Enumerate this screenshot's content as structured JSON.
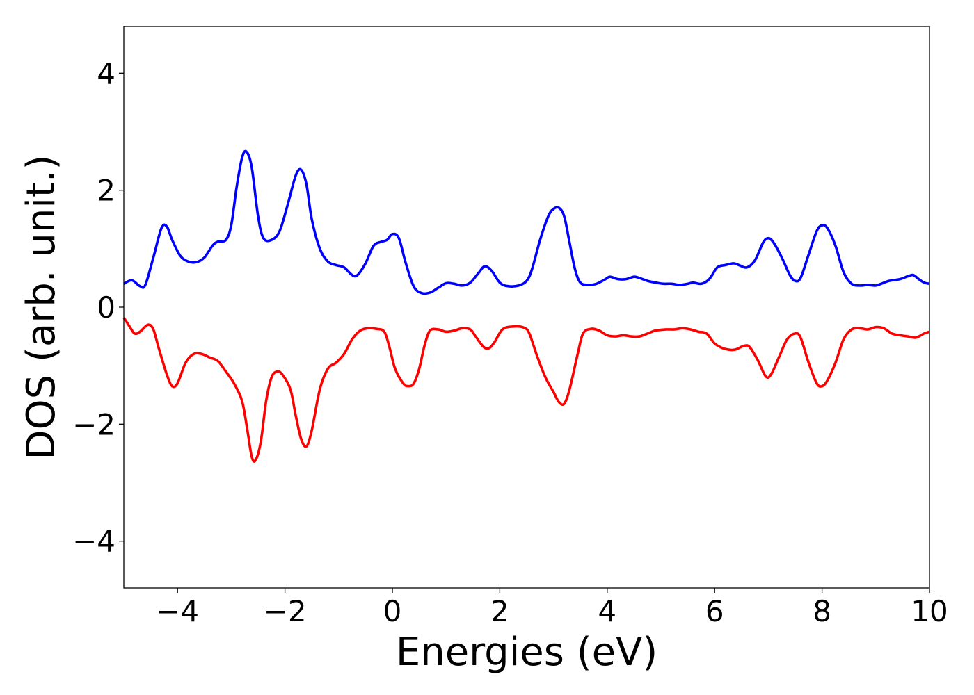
{
  "chart_data": {
    "type": "line",
    "title": "",
    "xlabel": "Energies (eV)",
    "ylabel": "DOS (arb. unit.)",
    "xlim": [
      -5,
      10
    ],
    "ylim": [
      -4.8,
      4.8
    ],
    "xticks": [
      -4,
      -2,
      0,
      2,
      4,
      6,
      8,
      10
    ],
    "yticks": [
      -4,
      -2,
      0,
      2,
      4
    ],
    "xtick_labels": [
      "−4",
      "−2",
      "0",
      "2",
      "4",
      "6",
      "8",
      "10"
    ],
    "ytick_labels": [
      "−4",
      "−2",
      "0",
      "2",
      "4"
    ],
    "grid": false,
    "legend": null,
    "series": [
      {
        "color": "#0000ff",
        "points": [
          [
            -5.0,
            0.4
          ],
          [
            -4.85,
            0.46
          ],
          [
            -4.7,
            0.36
          ],
          [
            -4.6,
            0.38
          ],
          [
            -4.45,
            0.85
          ],
          [
            -4.3,
            1.35
          ],
          [
            -4.2,
            1.38
          ],
          [
            -4.1,
            1.15
          ],
          [
            -3.95,
            0.88
          ],
          [
            -3.8,
            0.78
          ],
          [
            -3.65,
            0.77
          ],
          [
            -3.5,
            0.85
          ],
          [
            -3.35,
            1.05
          ],
          [
            -3.25,
            1.12
          ],
          [
            -3.1,
            1.15
          ],
          [
            -3.0,
            1.4
          ],
          [
            -2.9,
            2.05
          ],
          [
            -2.8,
            2.55
          ],
          [
            -2.72,
            2.66
          ],
          [
            -2.62,
            2.4
          ],
          [
            -2.5,
            1.55
          ],
          [
            -2.4,
            1.18
          ],
          [
            -2.25,
            1.15
          ],
          [
            -2.1,
            1.3
          ],
          [
            -1.95,
            1.75
          ],
          [
            -1.8,
            2.25
          ],
          [
            -1.7,
            2.35
          ],
          [
            -1.6,
            2.1
          ],
          [
            -1.5,
            1.5
          ],
          [
            -1.35,
            1.0
          ],
          [
            -1.2,
            0.78
          ],
          [
            -1.05,
            0.72
          ],
          [
            -0.9,
            0.68
          ],
          [
            -0.75,
            0.55
          ],
          [
            -0.65,
            0.55
          ],
          [
            -0.5,
            0.75
          ],
          [
            -0.35,
            1.05
          ],
          [
            -0.2,
            1.12
          ],
          [
            -0.1,
            1.15
          ],
          [
            0.0,
            1.25
          ],
          [
            0.12,
            1.18
          ],
          [
            0.25,
            0.75
          ],
          [
            0.4,
            0.35
          ],
          [
            0.55,
            0.24
          ],
          [
            0.7,
            0.25
          ],
          [
            0.85,
            0.33
          ],
          [
            1.0,
            0.41
          ],
          [
            1.15,
            0.4
          ],
          [
            1.3,
            0.37
          ],
          [
            1.45,
            0.42
          ],
          [
            1.6,
            0.58
          ],
          [
            1.72,
            0.7
          ],
          [
            1.85,
            0.62
          ],
          [
            2.0,
            0.42
          ],
          [
            2.15,
            0.36
          ],
          [
            2.35,
            0.37
          ],
          [
            2.5,
            0.45
          ],
          [
            2.6,
            0.65
          ],
          [
            2.75,
            1.15
          ],
          [
            2.9,
            1.55
          ],
          [
            3.0,
            1.68
          ],
          [
            3.1,
            1.7
          ],
          [
            3.2,
            1.55
          ],
          [
            3.3,
            1.1
          ],
          [
            3.4,
            0.65
          ],
          [
            3.5,
            0.42
          ],
          [
            3.65,
            0.38
          ],
          [
            3.8,
            0.4
          ],
          [
            3.95,
            0.47
          ],
          [
            4.05,
            0.52
          ],
          [
            4.2,
            0.48
          ],
          [
            4.35,
            0.48
          ],
          [
            4.5,
            0.52
          ],
          [
            4.6,
            0.5
          ],
          [
            4.75,
            0.45
          ],
          [
            4.9,
            0.42
          ],
          [
            5.05,
            0.4
          ],
          [
            5.2,
            0.4
          ],
          [
            5.35,
            0.38
          ],
          [
            5.5,
            0.4
          ],
          [
            5.6,
            0.42
          ],
          [
            5.75,
            0.4
          ],
          [
            5.9,
            0.48
          ],
          [
            6.05,
            0.68
          ],
          [
            6.2,
            0.72
          ],
          [
            6.35,
            0.75
          ],
          [
            6.45,
            0.72
          ],
          [
            6.6,
            0.68
          ],
          [
            6.75,
            0.8
          ],
          [
            6.9,
            1.1
          ],
          [
            7.0,
            1.18
          ],
          [
            7.1,
            1.1
          ],
          [
            7.25,
            0.85
          ],
          [
            7.4,
            0.55
          ],
          [
            7.5,
            0.45
          ],
          [
            7.6,
            0.5
          ],
          [
            7.75,
            0.9
          ],
          [
            7.9,
            1.3
          ],
          [
            8.0,
            1.4
          ],
          [
            8.1,
            1.35
          ],
          [
            8.25,
            1.05
          ],
          [
            8.4,
            0.6
          ],
          [
            8.55,
            0.4
          ],
          [
            8.7,
            0.37
          ],
          [
            8.85,
            0.38
          ],
          [
            9.0,
            0.37
          ],
          [
            9.1,
            0.4
          ],
          [
            9.25,
            0.45
          ],
          [
            9.45,
            0.48
          ],
          [
            9.6,
            0.53
          ],
          [
            9.7,
            0.55
          ],
          [
            9.8,
            0.48
          ],
          [
            9.9,
            0.42
          ],
          [
            10.0,
            0.4
          ]
        ]
      },
      {
        "color": "#ff0000",
        "points": [
          [
            -5.0,
            -0.18
          ],
          [
            -4.9,
            -0.32
          ],
          [
            -4.8,
            -0.45
          ],
          [
            -4.7,
            -0.42
          ],
          [
            -4.55,
            -0.3
          ],
          [
            -4.45,
            -0.38
          ],
          [
            -4.35,
            -0.7
          ],
          [
            -4.2,
            -1.15
          ],
          [
            -4.1,
            -1.35
          ],
          [
            -4.0,
            -1.3
          ],
          [
            -3.85,
            -0.95
          ],
          [
            -3.7,
            -0.8
          ],
          [
            -3.55,
            -0.8
          ],
          [
            -3.4,
            -0.86
          ],
          [
            -3.25,
            -0.92
          ],
          [
            -3.1,
            -1.1
          ],
          [
            -2.95,
            -1.3
          ],
          [
            -2.8,
            -1.6
          ],
          [
            -2.7,
            -2.1
          ],
          [
            -2.62,
            -2.55
          ],
          [
            -2.55,
            -2.62
          ],
          [
            -2.45,
            -2.3
          ],
          [
            -2.35,
            -1.6
          ],
          [
            -2.25,
            -1.2
          ],
          [
            -2.15,
            -1.1
          ],
          [
            -2.05,
            -1.15
          ],
          [
            -1.9,
            -1.4
          ],
          [
            -1.8,
            -1.85
          ],
          [
            -1.7,
            -2.25
          ],
          [
            -1.6,
            -2.38
          ],
          [
            -1.5,
            -2.1
          ],
          [
            -1.35,
            -1.4
          ],
          [
            -1.2,
            -1.05
          ],
          [
            -1.05,
            -0.95
          ],
          [
            -0.9,
            -0.8
          ],
          [
            -0.75,
            -0.55
          ],
          [
            -0.6,
            -0.4
          ],
          [
            -0.45,
            -0.36
          ],
          [
            -0.3,
            -0.37
          ],
          [
            -0.15,
            -0.42
          ],
          [
            -0.05,
            -0.7
          ],
          [
            0.05,
            -1.05
          ],
          [
            0.2,
            -1.3
          ],
          [
            0.3,
            -1.35
          ],
          [
            0.4,
            -1.3
          ],
          [
            0.5,
            -1.05
          ],
          [
            0.6,
            -0.65
          ],
          [
            0.7,
            -0.4
          ],
          [
            0.85,
            -0.38
          ],
          [
            1.0,
            -0.42
          ],
          [
            1.15,
            -0.4
          ],
          [
            1.3,
            -0.36
          ],
          [
            1.45,
            -0.38
          ],
          [
            1.55,
            -0.5
          ],
          [
            1.7,
            -0.68
          ],
          [
            1.8,
            -0.7
          ],
          [
            1.9,
            -0.6
          ],
          [
            2.05,
            -0.38
          ],
          [
            2.25,
            -0.33
          ],
          [
            2.45,
            -0.35
          ],
          [
            2.55,
            -0.45
          ],
          [
            2.7,
            -0.85
          ],
          [
            2.85,
            -1.2
          ],
          [
            3.0,
            -1.45
          ],
          [
            3.1,
            -1.62
          ],
          [
            3.2,
            -1.65
          ],
          [
            3.3,
            -1.4
          ],
          [
            3.45,
            -0.8
          ],
          [
            3.55,
            -0.45
          ],
          [
            3.7,
            -0.37
          ],
          [
            3.85,
            -0.4
          ],
          [
            4.0,
            -0.48
          ],
          [
            4.15,
            -0.5
          ],
          [
            4.3,
            -0.48
          ],
          [
            4.45,
            -0.5
          ],
          [
            4.6,
            -0.5
          ],
          [
            4.75,
            -0.45
          ],
          [
            4.9,
            -0.4
          ],
          [
            5.1,
            -0.38
          ],
          [
            5.25,
            -0.38
          ],
          [
            5.4,
            -0.36
          ],
          [
            5.55,
            -0.38
          ],
          [
            5.7,
            -0.42
          ],
          [
            5.85,
            -0.45
          ],
          [
            6.0,
            -0.62
          ],
          [
            6.15,
            -0.7
          ],
          [
            6.3,
            -0.73
          ],
          [
            6.4,
            -0.72
          ],
          [
            6.55,
            -0.66
          ],
          [
            6.65,
            -0.68
          ],
          [
            6.8,
            -0.9
          ],
          [
            6.95,
            -1.18
          ],
          [
            7.05,
            -1.15
          ],
          [
            7.2,
            -0.85
          ],
          [
            7.35,
            -0.55
          ],
          [
            7.5,
            -0.45
          ],
          [
            7.6,
            -0.52
          ],
          [
            7.75,
            -0.95
          ],
          [
            7.9,
            -1.3
          ],
          [
            8.0,
            -1.35
          ],
          [
            8.1,
            -1.25
          ],
          [
            8.25,
            -0.95
          ],
          [
            8.4,
            -0.55
          ],
          [
            8.55,
            -0.38
          ],
          [
            8.7,
            -0.36
          ],
          [
            8.85,
            -0.38
          ],
          [
            9.0,
            -0.34
          ],
          [
            9.15,
            -0.36
          ],
          [
            9.3,
            -0.45
          ],
          [
            9.45,
            -0.48
          ],
          [
            9.6,
            -0.5
          ],
          [
            9.75,
            -0.52
          ],
          [
            9.9,
            -0.45
          ],
          [
            10.0,
            -0.42
          ]
        ]
      }
    ]
  }
}
